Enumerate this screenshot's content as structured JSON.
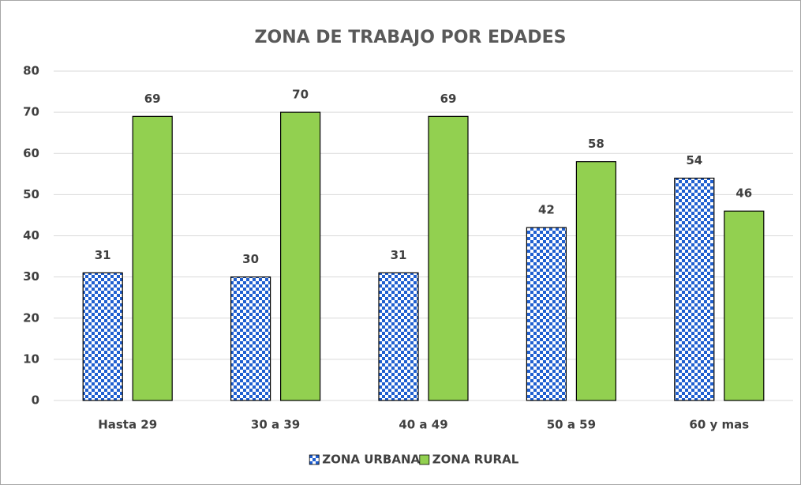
{
  "chart_data": {
    "type": "bar",
    "title": "ZONA DE TRABAJO POR EDADES",
    "categories": [
      "Hasta 29",
      "30 a 39",
      "40 a 49",
      "50 a 59",
      "60 y mas"
    ],
    "series": [
      {
        "name": "ZONA URBANA",
        "color": "#1f5fd0",
        "pattern": "checkered",
        "values": [
          31,
          30,
          31,
          42,
          54
        ]
      },
      {
        "name": "ZONA RURAL",
        "color": "#92d050",
        "values": [
          69,
          70,
          69,
          58,
          46
        ]
      }
    ],
    "ylim": [
      0,
      80
    ],
    "yticks": [
      0,
      10,
      20,
      30,
      40,
      50,
      60,
      70,
      80
    ],
    "grid": true,
    "legend": "bottom"
  }
}
